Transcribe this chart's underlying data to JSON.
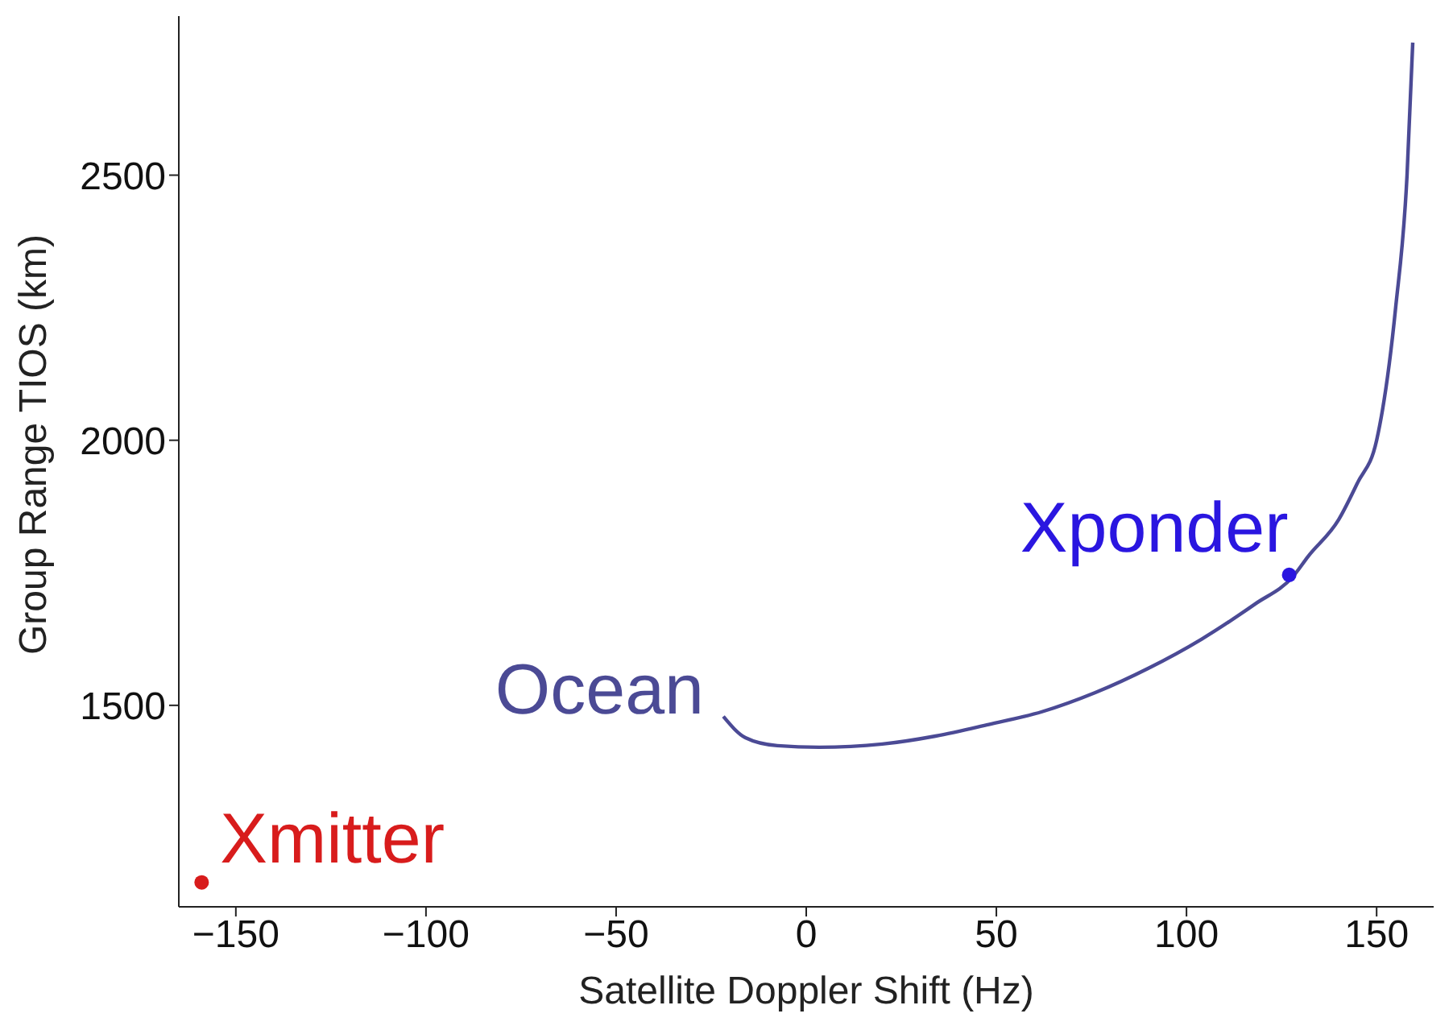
{
  "chart_data": {
    "type": "line",
    "xlabel": "Satellite Doppler Shift (Hz)",
    "ylabel": "Group Range TIOS (km)",
    "xlim": [
      -165,
      165
    ],
    "ylim": [
      1120,
      2800
    ],
    "xticks": [
      -150,
      -100,
      -50,
      0,
      50,
      100,
      150
    ],
    "yticks": [
      1500,
      2000,
      2500
    ],
    "series": [
      {
        "name": "Ocean",
        "color": "#4b4a95",
        "marker": "none",
        "x": [
          -21.8,
          -16,
          -7.6,
          3.4,
          20,
          34,
          48,
          62,
          76,
          90,
          104,
          118,
          128,
          132,
          140,
          145,
          150,
          155,
          158,
          159.5
        ],
        "values": [
          1479,
          1439,
          1424,
          1421,
          1427,
          1442,
          1464,
          1488,
          1524,
          1570,
          1625,
          1691,
          1743,
          1781,
          1850,
          1920,
          2000,
          2250,
          2500,
          2750
        ]
      },
      {
        "name": "Xponder",
        "type": "scatter",
        "color": "#2a16e0",
        "marker": "circle",
        "x": [
          127
        ],
        "values": [
          1746
        ]
      },
      {
        "name": "Xmitter",
        "type": "scatter",
        "color": "#d81c1c",
        "marker": "circle",
        "x": [
          -159
        ],
        "values": [
          1166
        ]
      }
    ]
  }
}
